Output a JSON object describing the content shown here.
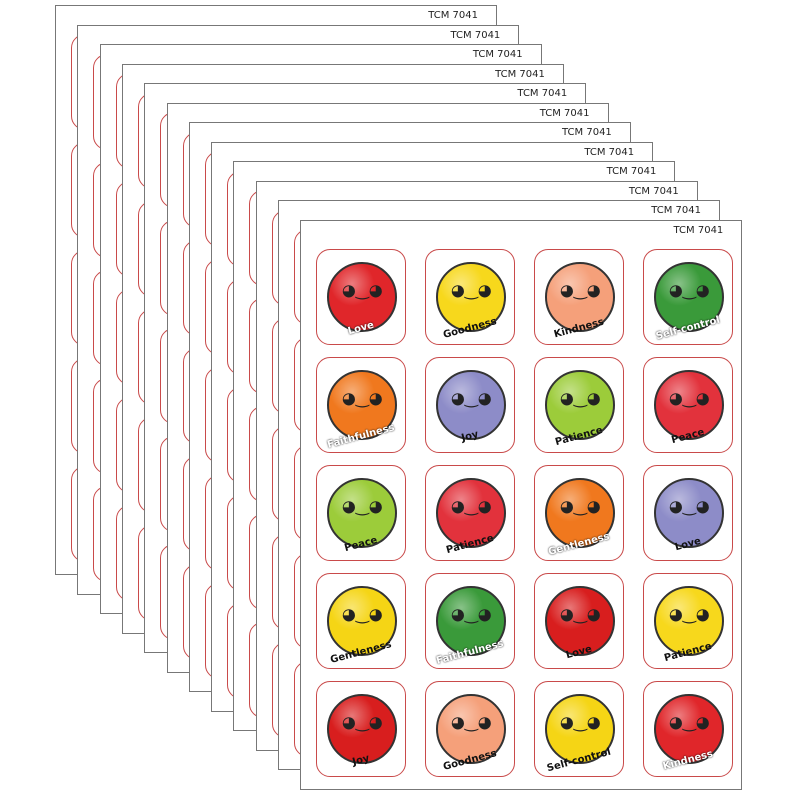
{
  "sheet_code": "TCM 7041",
  "sheet_count": 12,
  "back_column_colors": [
    "#e02828",
    "#f07a1e",
    "#8cc63a",
    "#f5d515",
    "#d81e1e"
  ],
  "stickers": [
    {
      "fruit": "apple",
      "label": "Love",
      "color": "#e0262a",
      "label_color": "#fff"
    },
    {
      "fruit": "pineapple",
      "label": "Goodness",
      "color": "#f7d81c",
      "label_color": "#111"
    },
    {
      "fruit": "peach",
      "label": "Kindness",
      "color": "#f5a07a",
      "label_color": "#111"
    },
    {
      "fruit": "watermelon",
      "label": "Self-control",
      "color": "#3a9a3a",
      "label_color": "#fff"
    },
    {
      "fruit": "orange",
      "label": "Faithfulness",
      "color": "#f0781e",
      "label_color": "#fff"
    },
    {
      "fruit": "grapes",
      "label": "Joy",
      "color": "#8d8cc8",
      "label_color": "#111"
    },
    {
      "fruit": "pear",
      "label": "Patience",
      "color": "#9ccc3a",
      "label_color": "#111"
    },
    {
      "fruit": "strawberries",
      "label": "Peace",
      "color": "#e2323c",
      "label_color": "#111"
    },
    {
      "fruit": "pear",
      "label": "Peace",
      "color": "#9ccc3a",
      "label_color": "#111"
    },
    {
      "fruit": "strawberries",
      "label": "Patience",
      "color": "#e2323c",
      "label_color": "#111"
    },
    {
      "fruit": "orange",
      "label": "Gentleness",
      "color": "#f0781e",
      "label_color": "#fff"
    },
    {
      "fruit": "grapes",
      "label": "Love",
      "color": "#8d8cc8",
      "label_color": "#111"
    },
    {
      "fruit": "banana",
      "label": "Gentleness",
      "color": "#f5d515",
      "label_color": "#111"
    },
    {
      "fruit": "watermelon",
      "label": "Faithfulness",
      "color": "#3a9a3a",
      "label_color": "#fff"
    },
    {
      "fruit": "cherries",
      "label": "Love",
      "color": "#d81e1e",
      "label_color": "#111"
    },
    {
      "fruit": "pineapple",
      "label": "Patience",
      "color": "#f7d81c",
      "label_color": "#111"
    },
    {
      "fruit": "cherries",
      "label": "Joy",
      "color": "#d81e1e",
      "label_color": "#111"
    },
    {
      "fruit": "peach",
      "label": "Goodness",
      "color": "#f5a07a",
      "label_color": "#111"
    },
    {
      "fruit": "banana",
      "label": "Self-control",
      "color": "#f5d515",
      "label_color": "#111"
    },
    {
      "fruit": "apple",
      "label": "Kindness",
      "color": "#e0262a",
      "label_color": "#fff"
    }
  ]
}
